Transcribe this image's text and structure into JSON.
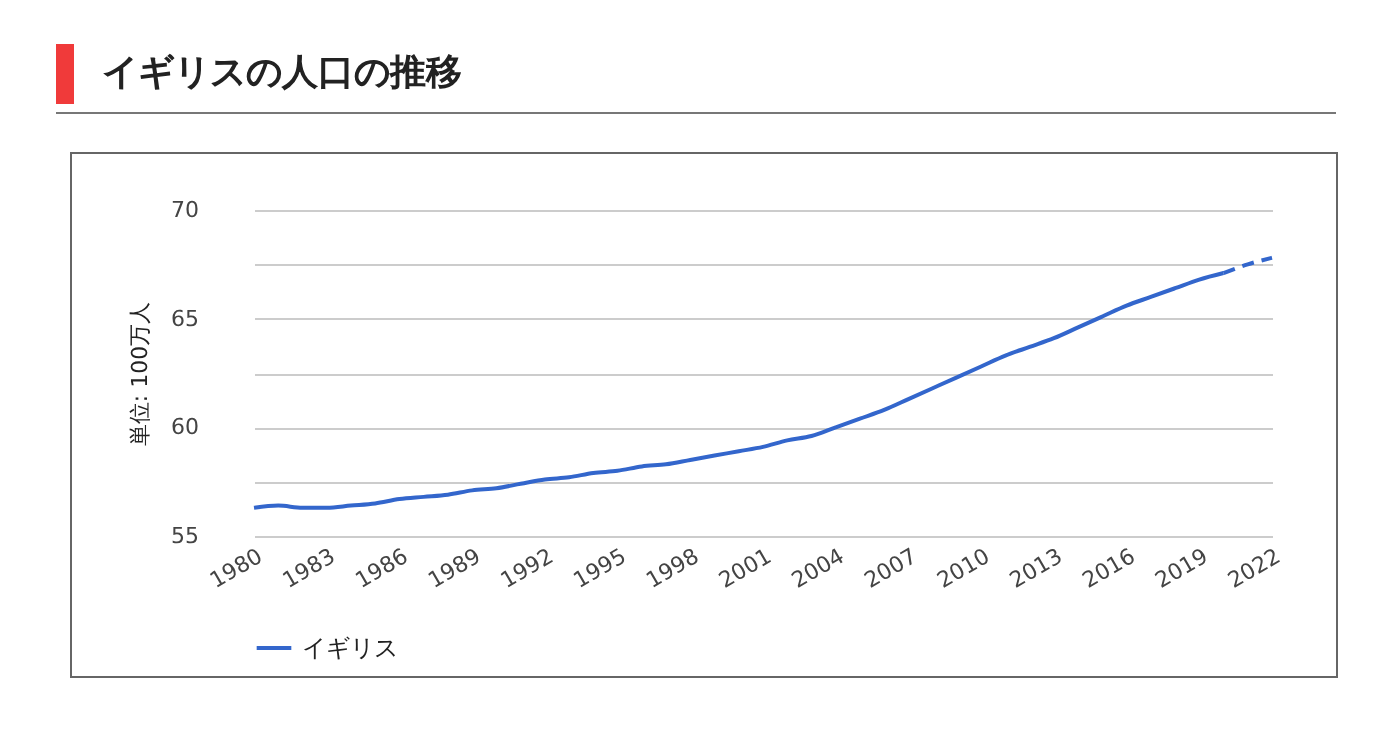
{
  "chart_data": {
    "type": "line",
    "title": "イギリスの人口の推移",
    "ylabel": "単位: 100万人",
    "xlim": [
      1980,
      2022
    ],
    "xticks": [
      1980,
      1983,
      1986,
      1989,
      1992,
      1995,
      1998,
      2001,
      2004,
      2007,
      2010,
      2013,
      2016,
      2019,
      2022
    ],
    "ylim": [
      55,
      70
    ],
    "yticks": [
      55,
      {
        "value": 57.5,
        "label": null
      },
      60,
      {
        "value": 62.5,
        "label": null
      },
      65,
      {
        "value": 67.5,
        "label": null
      },
      70
    ],
    "grid": "y",
    "legend": "bottom",
    "marker": "none",
    "series": [
      {
        "name": "イギリス",
        "color": "#3366cc",
        "line_style": "solid",
        "x": [
          1980,
          1981,
          1982,
          1983,
          1984,
          1985,
          1986,
          1987,
          1988,
          1989,
          1990,
          1991,
          1992,
          1993,
          1994,
          1995,
          1996,
          1997,
          1998,
          1999,
          2000,
          2001,
          2002,
          2003,
          2004,
          2005,
          2006,
          2007,
          2008,
          2009,
          2010,
          2011,
          2012,
          2013,
          2014,
          2015,
          2016,
          2017,
          2018,
          2019,
          2020
        ],
        "values": [
          56.3,
          56.4,
          56.3,
          56.3,
          56.4,
          56.5,
          56.7,
          56.8,
          56.9,
          57.1,
          57.2,
          57.4,
          57.6,
          57.7,
          57.9,
          58.0,
          58.2,
          58.3,
          58.5,
          58.7,
          58.9,
          59.1,
          59.4,
          59.6,
          60.0,
          60.4,
          60.8,
          61.3,
          61.8,
          62.3,
          62.8,
          63.3,
          63.7,
          64.1,
          64.6,
          65.1,
          65.6,
          66.0,
          66.4,
          66.8,
          67.1
        ]
      },
      {
        "color": "#3366cc",
        "line_style": "dashed",
        "x": [
          2020,
          2021,
          2022
        ],
        "values": [
          67.1,
          67.5,
          67.8
        ]
      }
    ]
  }
}
